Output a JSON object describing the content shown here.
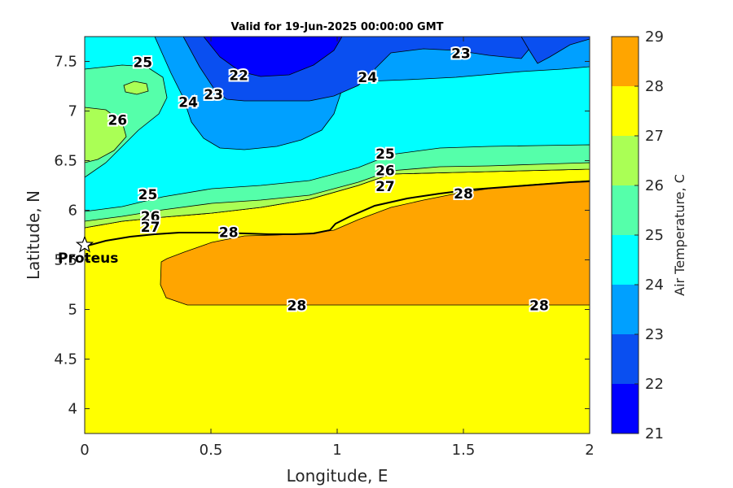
{
  "chart_data": {
    "type": "heatmap",
    "title": "Valid for 19-Jun-2025 00:00:00 GMT",
    "xlabel": "Longitude, E",
    "ylabel": "Latitude, N",
    "xlim": [
      0,
      2
    ],
    "ylim": [
      3.75,
      7.75
    ],
    "x_ticks": [
      "0",
      "0.5",
      "1",
      "1.5",
      "2"
    ],
    "y_ticks": [
      "4",
      "4.5",
      "5",
      "5.5",
      "6",
      "6.5",
      "7",
      "7.5"
    ],
    "colorbar": {
      "label": "Air Temperature, C",
      "range": [
        21,
        29
      ],
      "ticks": [
        "21",
        "22",
        "23",
        "24",
        "25",
        "26",
        "27",
        "28",
        "29"
      ],
      "colors": [
        "#0000ff",
        "#0a4ff0",
        "#00a0ff",
        "#00ffff",
        "#55ffaa",
        "#aaff55",
        "#ffff00",
        "#ffa500",
        "#ff5000"
      ]
    },
    "contour_labels": [
      {
        "text": "22",
        "x": 0.61,
        "y": 7.36
      },
      {
        "text": "23",
        "x": 0.51,
        "y": 7.17
      },
      {
        "text": "23",
        "x": 1.49,
        "y": 7.58
      },
      {
        "text": "24",
        "x": 0.41,
        "y": 7.09
      },
      {
        "text": "24",
        "x": 1.12,
        "y": 7.34
      },
      {
        "text": "25",
        "x": 0.23,
        "y": 7.49
      },
      {
        "text": "25",
        "x": 0.25,
        "y": 6.16
      },
      {
        "text": "25",
        "x": 1.19,
        "y": 6.57
      },
      {
        "text": "26",
        "x": 0.13,
        "y": 6.91
      },
      {
        "text": "26",
        "x": 0.26,
        "y": 5.94
      },
      {
        "text": "26",
        "x": 1.19,
        "y": 6.4
      },
      {
        "text": "27",
        "x": 0.26,
        "y": 5.83
      },
      {
        "text": "27",
        "x": 1.19,
        "y": 6.24
      },
      {
        "text": "28",
        "x": 0.57,
        "y": 5.78
      },
      {
        "text": "28",
        "x": 1.5,
        "y": 6.17
      },
      {
        "text": "28",
        "x": 0.84,
        "y": 5.04
      },
      {
        "text": "28",
        "x": 1.8,
        "y": 5.04
      }
    ],
    "station": {
      "name": "Proteus",
      "x": 0.0,
      "y": 5.65
    }
  }
}
